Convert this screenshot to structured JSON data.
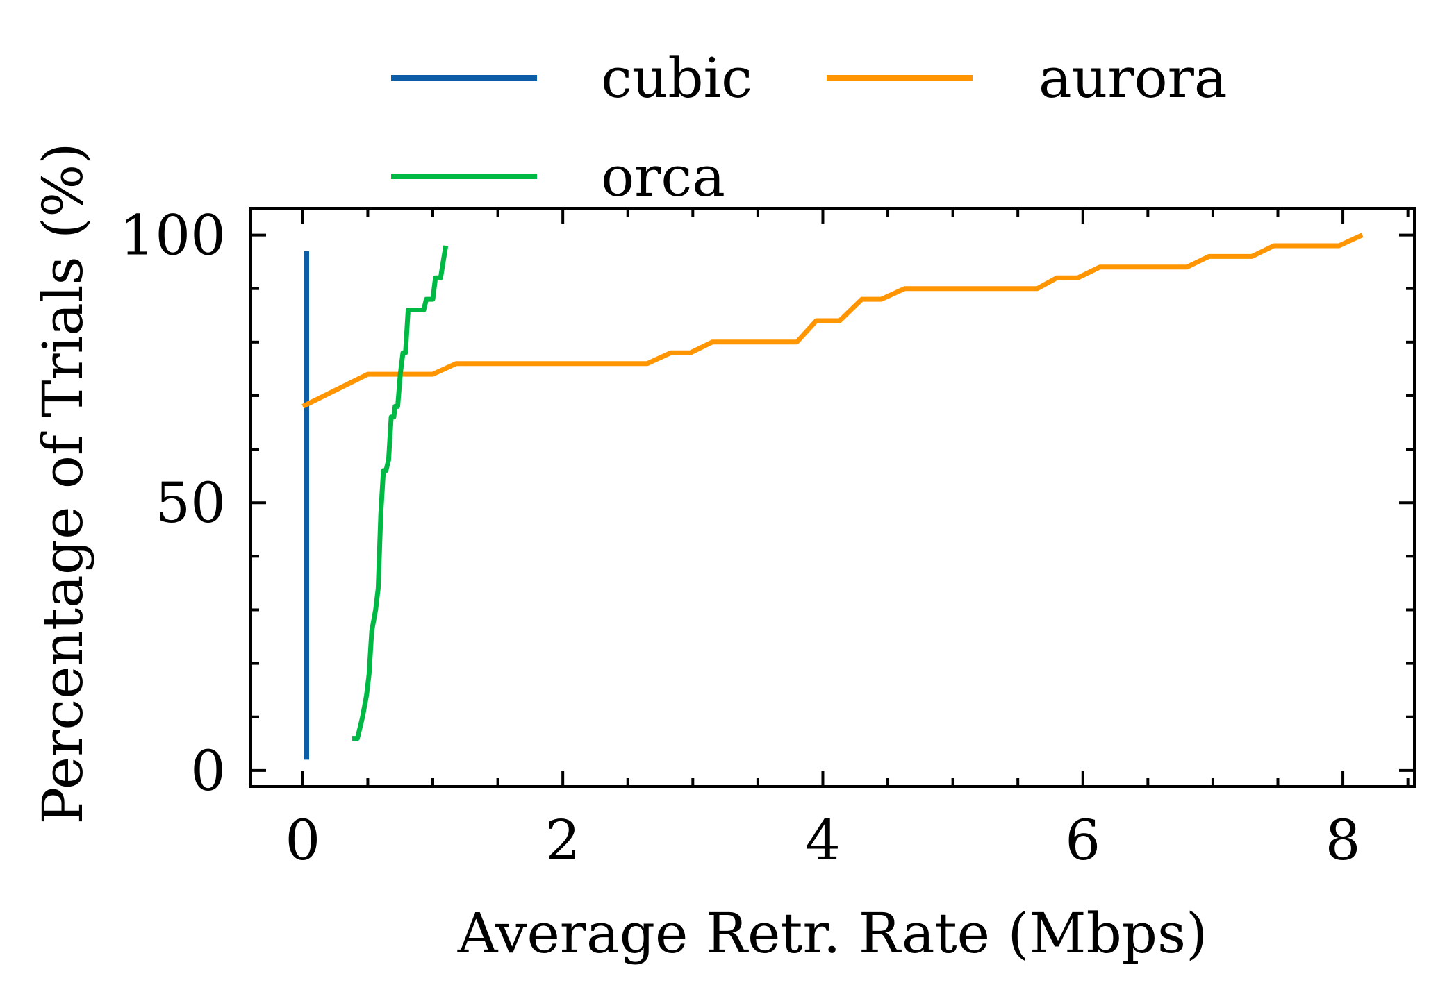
{
  "chart_data": {
    "type": "line",
    "title": "",
    "xlabel": "Average Retr. Rate (Mbps)",
    "ylabel": "Percentage of Trials (%)",
    "xlim": [
      -0.4,
      8.55
    ],
    "ylim": [
      -3,
      105
    ],
    "x_ticks": [
      0,
      2,
      4,
      6,
      8
    ],
    "x_minor_ticks": [
      0.5,
      1,
      1.5,
      2.5,
      3,
      3.5,
      4.5,
      5,
      5.5,
      6.5,
      7,
      7.5,
      8.5
    ],
    "y_ticks": [
      0,
      50,
      100
    ],
    "y_minor_ticks": [
      10,
      20,
      30,
      40,
      60,
      70,
      80,
      90
    ],
    "grid": false,
    "legend_position": "top-outside",
    "series": [
      {
        "name": "cubic",
        "color": "#0c5da5",
        "points": [
          [
            0.03,
            2
          ],
          [
            0.03,
            97
          ]
        ]
      },
      {
        "name": "aurora",
        "color": "#ff9500",
        "points": [
          [
            0.0,
            68
          ],
          [
            0.5,
            74
          ],
          [
            1.0,
            74
          ],
          [
            1.18,
            76
          ],
          [
            2.65,
            76
          ],
          [
            2.83,
            78
          ],
          [
            2.98,
            78
          ],
          [
            3.15,
            80
          ],
          [
            3.8,
            80
          ],
          [
            3.95,
            84
          ],
          [
            4.13,
            84
          ],
          [
            4.3,
            88
          ],
          [
            4.45,
            88
          ],
          [
            4.63,
            90
          ],
          [
            5.65,
            90
          ],
          [
            5.8,
            92
          ],
          [
            5.96,
            92
          ],
          [
            6.13,
            94
          ],
          [
            6.8,
            94
          ],
          [
            6.97,
            96
          ],
          [
            7.3,
            96
          ],
          [
            7.47,
            98
          ],
          [
            7.97,
            98
          ],
          [
            8.15,
            100
          ]
        ]
      },
      {
        "name": "orca",
        "color": "#00b945",
        "points": [
          [
            0.38,
            6
          ],
          [
            0.42,
            6
          ],
          [
            0.44,
            8
          ],
          [
            0.46,
            10
          ],
          [
            0.49,
            14
          ],
          [
            0.51,
            18
          ],
          [
            0.53,
            26
          ],
          [
            0.56,
            30
          ],
          [
            0.58,
            34
          ],
          [
            0.6,
            48
          ],
          [
            0.62,
            56
          ],
          [
            0.64,
            56
          ],
          [
            0.66,
            58
          ],
          [
            0.68,
            66
          ],
          [
            0.7,
            66
          ],
          [
            0.71,
            68
          ],
          [
            0.73,
            68
          ],
          [
            0.75,
            74
          ],
          [
            0.77,
            78
          ],
          [
            0.79,
            78
          ],
          [
            0.81,
            86
          ],
          [
            0.93,
            86
          ],
          [
            0.95,
            88
          ],
          [
            1.0,
            88
          ],
          [
            1.02,
            92
          ],
          [
            1.06,
            92
          ],
          [
            1.1,
            98
          ]
        ]
      }
    ]
  }
}
